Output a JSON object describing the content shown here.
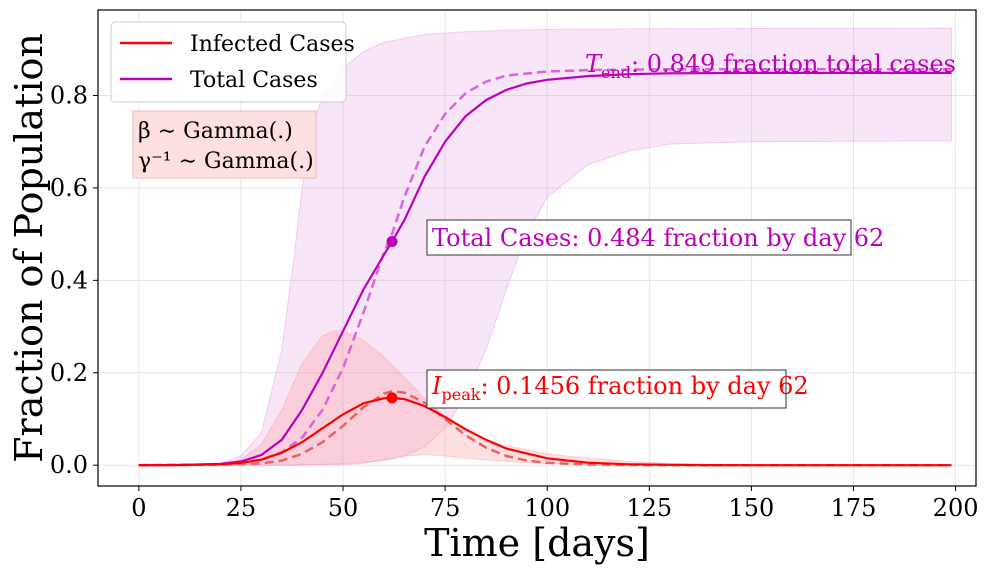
{
  "chart_data": {
    "type": "line",
    "xlabel": "Time [days]",
    "ylabel": "Fraction of Population",
    "xlim": [
      -10,
      205
    ],
    "ylim": [
      -0.045,
      0.985
    ],
    "x_ticks": [
      0,
      25,
      50,
      75,
      100,
      125,
      150,
      175,
      200
    ],
    "y_ticks": [
      0.0,
      0.2,
      0.4,
      0.6,
      0.8
    ],
    "grid": true,
    "legend_position": "top-left",
    "colors": {
      "infected": "#ff0000",
      "total": "#bb00bb",
      "infected_band": "#ff9999",
      "total_band": "#dd88dd",
      "prior_box": "#ffe0e0"
    },
    "series": [
      {
        "name": "Infected Cases",
        "role": "median",
        "x": [
          0,
          10,
          20,
          25,
          30,
          35,
          40,
          45,
          50,
          55,
          60,
          62,
          65,
          70,
          75,
          80,
          85,
          90,
          100,
          110,
          120,
          130,
          140,
          150,
          175,
          199
        ],
        "values": [
          0,
          0.0005,
          0.002,
          0.005,
          0.012,
          0.027,
          0.05,
          0.08,
          0.11,
          0.134,
          0.1448,
          0.1456,
          0.143,
          0.128,
          0.104,
          0.078,
          0.055,
          0.036,
          0.015,
          0.0055,
          0.002,
          0.0008,
          0.0003,
          0.0001,
          0,
          0
        ]
      },
      {
        "name": "Infected Cases (dashed)",
        "role": "reference",
        "x": [
          0,
          20,
          30,
          35,
          40,
          45,
          50,
          55,
          60,
          62,
          65,
          70,
          75,
          80,
          85,
          90,
          95,
          100,
          110,
          120,
          130,
          150,
          199
        ],
        "values": [
          0,
          0.0008,
          0.004,
          0.01,
          0.025,
          0.05,
          0.085,
          0.125,
          0.155,
          0.16,
          0.157,
          0.135,
          0.1,
          0.065,
          0.038,
          0.02,
          0.01,
          0.005,
          0.0015,
          0.0004,
          0.0001,
          0,
          0
        ]
      },
      {
        "name": "Infected band upper",
        "role": "band",
        "x": [
          0,
          20,
          25,
          30,
          35,
          40,
          45,
          48,
          50,
          55,
          60,
          65,
          70,
          75,
          80,
          85,
          90,
          100,
          110,
          120,
          130,
          140,
          150,
          199
        ],
        "values": [
          0,
          0.003,
          0.012,
          0.045,
          0.12,
          0.22,
          0.28,
          0.292,
          0.29,
          0.27,
          0.235,
          0.19,
          0.145,
          0.105,
          0.075,
          0.055,
          0.042,
          0.025,
          0.015,
          0.008,
          0.004,
          0.002,
          0.001,
          0.0005
        ]
      },
      {
        "name": "Infected band lower",
        "role": "band",
        "x": [
          0,
          40,
          50,
          55,
          60,
          65,
          70,
          75,
          80,
          90,
          100,
          110,
          120,
          130,
          199
        ],
        "values": [
          0,
          0,
          0.001,
          0.004,
          0.012,
          0.02,
          0.023,
          0.02,
          0.015,
          0.008,
          0.004,
          0.0015,
          0.0005,
          0.0002,
          0
        ]
      },
      {
        "name": "Total Cases",
        "role": "median",
        "x": [
          0,
          10,
          20,
          25,
          30,
          35,
          40,
          45,
          50,
          55,
          60,
          62,
          65,
          70,
          75,
          80,
          85,
          90,
          95,
          100,
          110,
          120,
          130,
          150,
          199
        ],
        "values": [
          0,
          0.0005,
          0.003,
          0.008,
          0.022,
          0.055,
          0.12,
          0.2,
          0.29,
          0.38,
          0.455,
          0.484,
          0.53,
          0.625,
          0.7,
          0.755,
          0.79,
          0.812,
          0.826,
          0.834,
          0.842,
          0.846,
          0.848,
          0.849,
          0.849
        ]
      },
      {
        "name": "Total Cases (dashed)",
        "role": "reference",
        "x": [
          0,
          20,
          30,
          35,
          40,
          45,
          50,
          55,
          60,
          62,
          65,
          70,
          75,
          80,
          85,
          90,
          100,
          110,
          120,
          130,
          150,
          199
        ],
        "values": [
          0,
          0.0015,
          0.012,
          0.028,
          0.06,
          0.12,
          0.21,
          0.33,
          0.46,
          0.5,
          0.58,
          0.69,
          0.76,
          0.805,
          0.83,
          0.843,
          0.852,
          0.855,
          0.856,
          0.857,
          0.857,
          0.857
        ]
      },
      {
        "name": "Total band upper",
        "role": "band",
        "x": [
          0,
          20,
          25,
          30,
          35,
          38,
          40,
          42,
          45,
          50,
          55,
          60,
          70,
          80,
          90,
          100,
          120,
          150,
          199
        ],
        "values": [
          0,
          0.004,
          0.02,
          0.07,
          0.25,
          0.45,
          0.6,
          0.72,
          0.8,
          0.86,
          0.895,
          0.915,
          0.932,
          0.938,
          0.941,
          0.943,
          0.944,
          0.945,
          0.946
        ]
      },
      {
        "name": "Total band lower",
        "role": "band",
        "x": [
          0,
          30,
          40,
          50,
          60,
          65,
          70,
          75,
          80,
          85,
          90,
          95,
          100,
          110,
          120,
          130,
          150,
          199
        ],
        "values": [
          0,
          0,
          0.001,
          0.003,
          0.01,
          0.02,
          0.04,
          0.08,
          0.15,
          0.25,
          0.38,
          0.5,
          0.58,
          0.65,
          0.68,
          0.695,
          0.7,
          0.702
        ]
      }
    ],
    "markers": [
      {
        "series": "Infected Cases",
        "x": 62,
        "y": 0.1456
      },
      {
        "series": "Total Cases",
        "x": 62,
        "y": 0.484
      }
    ],
    "annotations": {
      "peak": {
        "symbol": "I",
        "subscript": "peak",
        "text": ": 0.1456 fraction by day 62"
      },
      "total": {
        "text": "Total Cases: 0.484 fraction by day 62"
      },
      "end": {
        "symbol": "T",
        "subscript": "end",
        "text": ": 0.849 fraction total cases"
      },
      "priors": [
        "β ∼ Gamma(.)",
        "γ⁻¹ ∼ Gamma(.)"
      ]
    },
    "legend": [
      "Infected Cases",
      "Total Cases"
    ]
  }
}
